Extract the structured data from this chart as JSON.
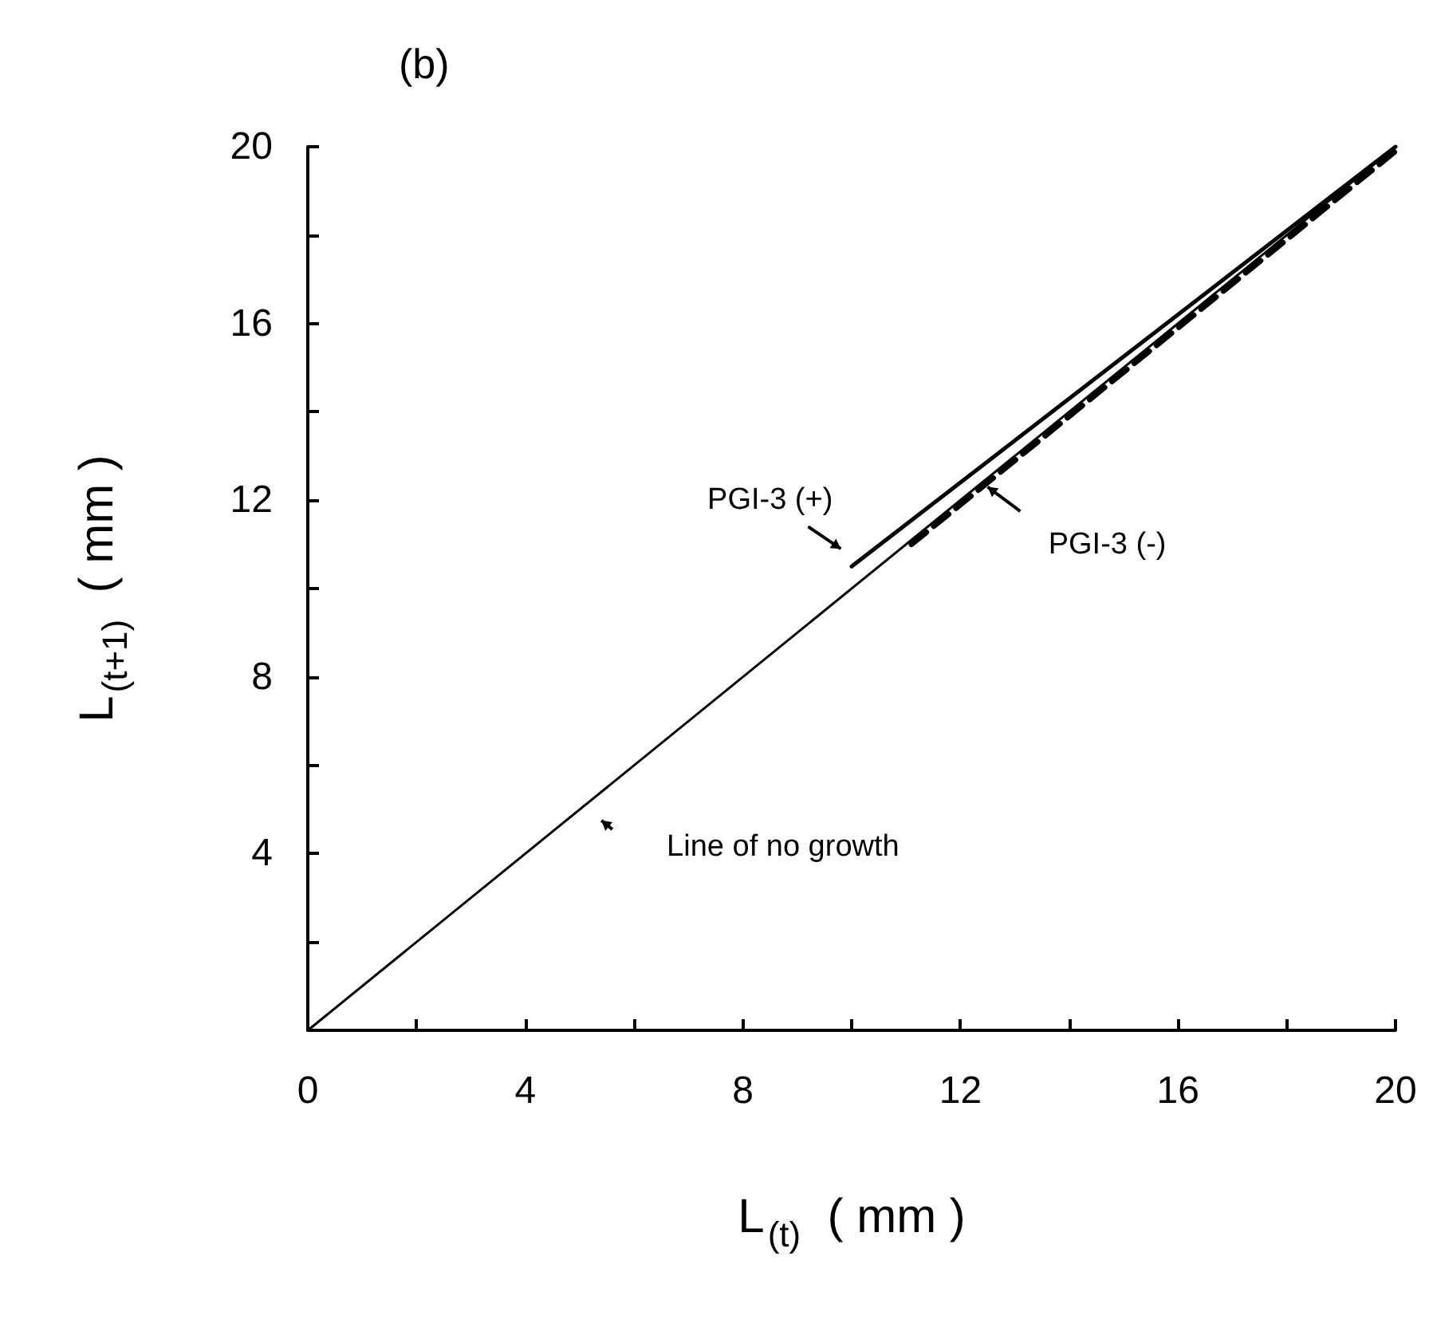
{
  "chart_data": {
    "type": "line",
    "title": "(b)",
    "xlabel": "L$_{(t)}$  ( mm )",
    "ylabel": "L$_{(t+1)}$  ( mm )",
    "series": [
      {
        "name": "Line of no growth",
        "color": "#000000",
        "x": [
          0,
          20
        ],
        "values": [
          0,
          20
        ],
        "line_style": "solid"
      },
      {
        "name": "PGI-3 (+)",
        "color": "#000000",
        "x": [
          10,
          20
        ],
        "values": [
          10.5,
          20
        ],
        "line_style": "solid"
      },
      {
        "name": "PGI-3 (-)",
        "color": "#000000",
        "x": [
          11.1,
          20
        ],
        "values": [
          11.0,
          19.9
        ],
        "line_style": "dashed"
      }
    ],
    "xlim": [
      0,
      20
    ],
    "ylim": [
      0,
      20
    ],
    "xticks": [
      0,
      {
        "value": 2,
        "label": null
      },
      4,
      {
        "value": 6,
        "label": null
      },
      8,
      {
        "value": 10,
        "label": null
      },
      12,
      {
        "value": 14,
        "label": null
      },
      16,
      {
        "value": 18,
        "label": null
      },
      20
    ],
    "yticks": [
      {
        "value": 0,
        "label": null
      },
      {
        "value": 2,
        "label": null
      },
      4,
      {
        "value": 6,
        "label": null
      },
      8,
      {
        "value": 10,
        "label": null
      },
      12,
      {
        "value": 14,
        "label": null
      },
      16,
      {
        "value": 18,
        "label": null
      },
      20
    ],
    "grid": false,
    "legend": false,
    "marker": "none"
  }
}
